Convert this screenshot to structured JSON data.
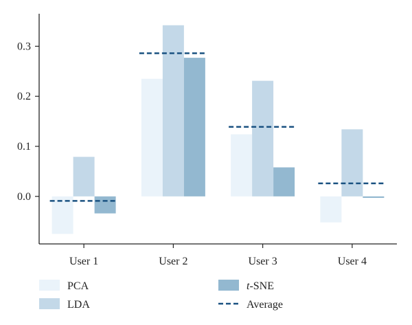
{
  "chart_data": {
    "type": "bar",
    "categories": [
      "User 1",
      "User 2",
      "User 3",
      "User 4"
    ],
    "series": [
      {
        "name": "PCA",
        "values": [
          -0.075,
          0.235,
          0.124,
          -0.052
        ],
        "color": "#eaf3fa"
      },
      {
        "name": "LDA",
        "values": [
          0.079,
          0.342,
          0.231,
          0.134
        ],
        "color": "#c3d8e8"
      },
      {
        "name_prefix": "t",
        "name_suffix": "-SNE",
        "name": "t-SNE",
        "values": [
          -0.034,
          0.277,
          0.058,
          -0.003
        ],
        "color": "#93b8d0"
      }
    ],
    "average": {
      "name": "Average",
      "values": [
        -0.009,
        0.286,
        0.139,
        0.026
      ],
      "color": "#1a5281"
    },
    "ylim": [
      -0.095,
      0.365
    ],
    "yticks": [
      0.0,
      0.1,
      0.2,
      0.3
    ],
    "ytick_labels": [
      "0.0",
      "0.1",
      "0.2",
      "0.3"
    ],
    "legend_position": "bottom"
  }
}
